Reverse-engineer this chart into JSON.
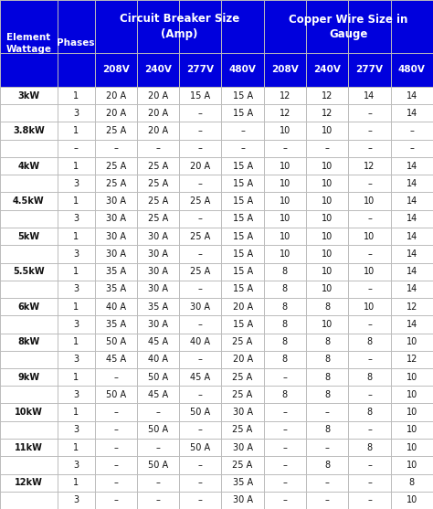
{
  "header_bg": "#0000dd",
  "header_text_color": "#ffffff",
  "data_bg": "#ffffff",
  "grid_color": "#bbbbbb",
  "text_color": "#111111",
  "col1_header": "Element\nWattage",
  "col2_header": "Phases",
  "group1_header": "Circuit Breaker Size\n(Amp)",
  "group2_header": "Copper Wire Size in\nGauge",
  "sub_headers": [
    "208V",
    "240V",
    "277V",
    "480V",
    "208V",
    "240V",
    "277V",
    "480V"
  ],
  "rows": [
    [
      "3kW",
      "1",
      "20 A",
      "20 A",
      "15 A",
      "15 A",
      "12",
      "12",
      "14",
      "14"
    ],
    [
      "",
      "3",
      "20 A",
      "20 A",
      "–",
      "15 A",
      "12",
      "12",
      "–",
      "14"
    ],
    [
      "3.8kW",
      "1",
      "25 A",
      "20 A",
      "–",
      "–",
      "10",
      "10",
      "–",
      "–"
    ],
    [
      "",
      "–",
      "–",
      "–",
      "–",
      "–",
      "–",
      "–",
      "–",
      "–"
    ],
    [
      "4kW",
      "1",
      "25 A",
      "25 A",
      "20 A",
      "15 A",
      "10",
      "10",
      "12",
      "14"
    ],
    [
      "",
      "3",
      "25 A",
      "25 A",
      "–",
      "15 A",
      "10",
      "10",
      "–",
      "14"
    ],
    [
      "4.5kW",
      "1",
      "30 A",
      "25 A",
      "25 A",
      "15 A",
      "10",
      "10",
      "10",
      "14"
    ],
    [
      "",
      "3",
      "30 A",
      "25 A",
      "–",
      "15 A",
      "10",
      "10",
      "–",
      "14"
    ],
    [
      "5kW",
      "1",
      "30 A",
      "30 A",
      "25 A",
      "15 A",
      "10",
      "10",
      "10",
      "14"
    ],
    [
      "",
      "3",
      "30 A",
      "30 A",
      "–",
      "15 A",
      "10",
      "10",
      "–",
      "14"
    ],
    [
      "5.5kW",
      "1",
      "35 A",
      "30 A",
      "25 A",
      "15 A",
      "8",
      "10",
      "10",
      "14"
    ],
    [
      "",
      "3",
      "35 A",
      "30 A",
      "–",
      "15 A",
      "8",
      "10",
      "–",
      "14"
    ],
    [
      "6kW",
      "1",
      "40 A",
      "35 A",
      "30 A",
      "20 A",
      "8",
      "8",
      "10",
      "12"
    ],
    [
      "",
      "3",
      "35 A",
      "30 A",
      "–",
      "15 A",
      "8",
      "10",
      "–",
      "14"
    ],
    [
      "8kW",
      "1",
      "50 A",
      "45 A",
      "40 A",
      "25 A",
      "8",
      "8",
      "8",
      "10"
    ],
    [
      "",
      "3",
      "45 A",
      "40 A",
      "–",
      "20 A",
      "8",
      "8",
      "–",
      "12"
    ],
    [
      "9kW",
      "1",
      "–",
      "50 A",
      "45 A",
      "25 A",
      "–",
      "8",
      "8",
      "10"
    ],
    [
      "",
      "3",
      "50 A",
      "45 A",
      "–",
      "25 A",
      "8",
      "8",
      "–",
      "10"
    ],
    [
      "10kW",
      "1",
      "–",
      "–",
      "50 A",
      "30 A",
      "–",
      "–",
      "8",
      "10"
    ],
    [
      "",
      "3",
      "–",
      "50 A",
      "–",
      "25 A",
      "–",
      "8",
      "–",
      "10"
    ],
    [
      "11kW",
      "1",
      "–",
      "–",
      "50 A",
      "30 A",
      "–",
      "–",
      "8",
      "10"
    ],
    [
      "",
      "3",
      "–",
      "50 A",
      "–",
      "25 A",
      "–",
      "8",
      "–",
      "10"
    ],
    [
      "12kW",
      "1",
      "–",
      "–",
      "–",
      "35 A",
      "–",
      "–",
      "–",
      "8"
    ],
    [
      "",
      "3",
      "–",
      "–",
      "–",
      "30 A",
      "–",
      "–",
      "–",
      "10"
    ]
  ],
  "col_widths_raw": [
    1.15,
    0.75,
    0.85,
    0.85,
    0.85,
    0.85,
    0.85,
    0.85,
    0.85,
    0.85
  ],
  "figsize": [
    4.74,
    5.57
  ],
  "dpi": 100
}
